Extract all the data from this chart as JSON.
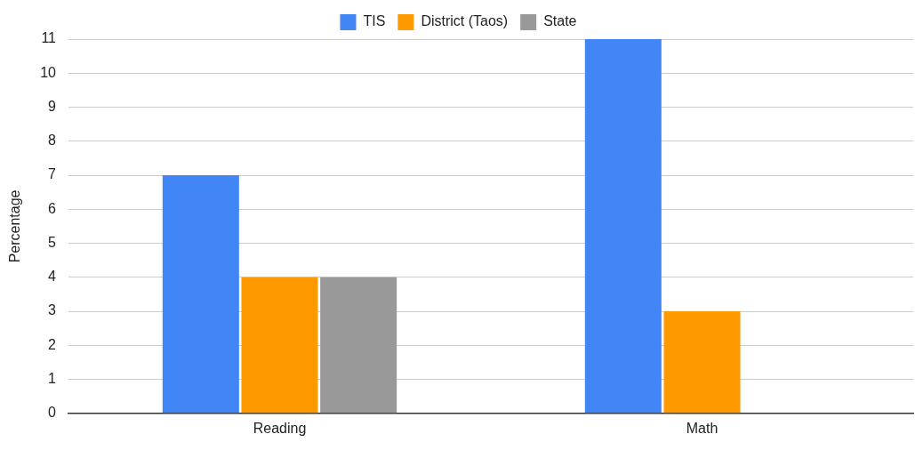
{
  "chart_data": {
    "type": "bar",
    "ylabel": "Percentage",
    "categories": [
      "Reading",
      "Math"
    ],
    "series": [
      {
        "name": "TIS",
        "color": "#4285f4",
        "values": [
          7,
          11
        ]
      },
      {
        "name": "District (Taos)",
        "color": "#ff9900",
        "values": [
          4,
          3
        ]
      },
      {
        "name": "State",
        "color": "#999999",
        "values": [
          4,
          null
        ]
      }
    ],
    "ylim": [
      0,
      11
    ],
    "yticks": [
      0,
      1,
      2,
      3,
      4,
      5,
      6,
      7,
      8,
      9,
      10,
      11
    ],
    "grid": "y",
    "legend": "top"
  }
}
